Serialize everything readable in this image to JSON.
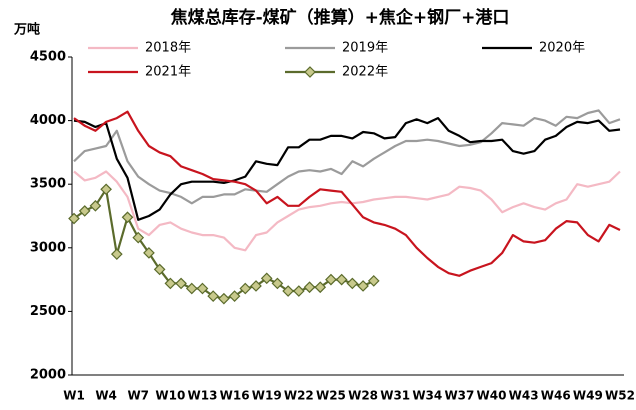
{
  "chart_data": {
    "type": "line",
    "title": "焦煤总库存-煤矿（推算）+焦企+钢厂+港口",
    "y_label": "万吨",
    "categories": [
      "W1",
      null,
      null,
      "W4",
      null,
      null,
      "W7",
      null,
      null,
      "W10",
      null,
      null,
      "W13",
      null,
      null,
      "W16",
      null,
      null,
      "W19",
      null,
      null,
      "W22",
      null,
      null,
      "W25",
      null,
      null,
      "W28",
      null,
      null,
      "W31",
      null,
      null,
      "W34",
      null,
      null,
      "W37",
      null,
      null,
      "W40",
      null,
      null,
      "W43",
      null,
      null,
      "W46",
      null,
      null,
      "W49",
      null,
      null,
      "W52"
    ],
    "ylim": [
      2000,
      4500
    ],
    "yticks": [
      2000,
      2500,
      3000,
      3500,
      4000,
      4500
    ],
    "grid": false,
    "legend": "top",
    "series": [
      {
        "name": "2018年",
        "color": "#f4b9c4",
        "values": [
          3600,
          3530,
          3550,
          3600,
          3520,
          3400,
          3150,
          3100,
          3180,
          3200,
          3150,
          3120,
          3100,
          3100,
          3080,
          3000,
          2980,
          3100,
          3120,
          3200,
          3250,
          3300,
          3320,
          3330,
          3350,
          3360,
          3350,
          3360,
          3380,
          3390,
          3400,
          3400,
          3390,
          3380,
          3400,
          3420,
          3480,
          3470,
          3450,
          3380,
          3280,
          3320,
          3350,
          3320,
          3300,
          3350,
          3380,
          3500,
          3480,
          3500,
          3520,
          3600
        ]
      },
      {
        "name": "2019年",
        "color": "#9b9b9b",
        "values": [
          3680,
          3760,
          3780,
          3800,
          3920,
          3680,
          3560,
          3500,
          3450,
          3430,
          3400,
          3350,
          3400,
          3400,
          3420,
          3420,
          3460,
          3450,
          3440,
          3500,
          3560,
          3600,
          3610,
          3600,
          3620,
          3580,
          3680,
          3640,
          3700,
          3750,
          3800,
          3840,
          3840,
          3850,
          3840,
          3820,
          3800,
          3810,
          3830,
          3900,
          3980,
          3970,
          3960,
          4020,
          4000,
          3960,
          4030,
          4020,
          4060,
          4080,
          3980,
          4010
        ]
      },
      {
        "name": "2020年",
        "color": "#000000",
        "values": [
          4000,
          3990,
          3950,
          3980,
          3700,
          3550,
          3220,
          3250,
          3300,
          3420,
          3500,
          3520,
          3520,
          3520,
          3510,
          3530,
          3560,
          3680,
          3660,
          3650,
          3790,
          3790,
          3850,
          3850,
          3880,
          3880,
          3860,
          3910,
          3900,
          3860,
          3870,
          3980,
          4010,
          3980,
          4020,
          3920,
          3880,
          3830,
          3840,
          3840,
          3850,
          3760,
          3740,
          3760,
          3850,
          3880,
          3950,
          3990,
          3980,
          4000,
          3920,
          3930
        ]
      },
      {
        "name": "2021年",
        "color": "#c8141e",
        "values": [
          4020,
          3960,
          3920,
          3990,
          4020,
          4070,
          3920,
          3800,
          3750,
          3720,
          3640,
          3610,
          3580,
          3540,
          3530,
          3520,
          3500,
          3450,
          3350,
          3400,
          3330,
          3330,
          3400,
          3460,
          3450,
          3440,
          3340,
          3240,
          3200,
          3180,
          3150,
          3100,
          3000,
          2920,
          2850,
          2800,
          2780,
          2820,
          2850,
          2880,
          2960,
          3100,
          3050,
          3040,
          3060,
          3150,
          3210,
          3200,
          3100,
          3050,
          3180,
          3140
        ]
      },
      {
        "name": "2022年",
        "color": "#5b6b2c",
        "marker": "diamond",
        "marker_color": "#c8c98c",
        "values": [
          3230,
          3290,
          3330,
          3460,
          2950,
          3240,
          3080,
          2960,
          2830,
          2720,
          2720,
          2680,
          2680,
          2620,
          2600,
          2620,
          2680,
          2700,
          2760,
          2720,
          2660,
          2660,
          2690,
          2690,
          2750,
          2750,
          2720,
          2700,
          2740,
          null,
          null,
          null,
          null,
          null,
          null,
          null,
          null,
          null,
          null,
          null,
          null,
          null,
          null,
          null,
          null,
          null,
          null,
          null,
          null,
          null,
          null,
          null
        ]
      }
    ]
  }
}
